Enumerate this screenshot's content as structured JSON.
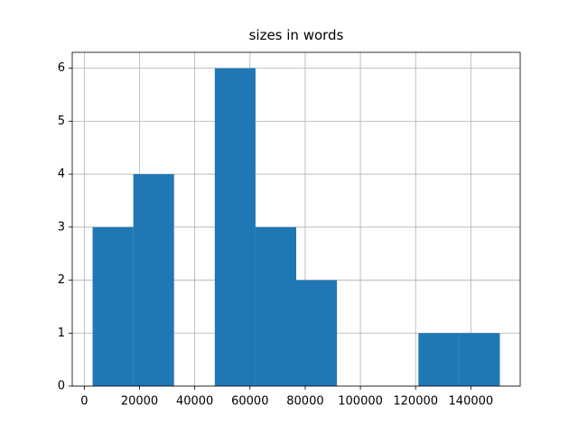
{
  "chart_data": {
    "type": "histogram",
    "title": "sizes in words",
    "bins": [
      3000,
      17750,
      32500,
      47250,
      62000,
      76750,
      91500,
      106250,
      121000,
      135750,
      150500
    ],
    "values": [
      3,
      4,
      0,
      6,
      3,
      2,
      0,
      0,
      1,
      1
    ],
    "color": "#1f77b4",
    "xlim": [
      -4375,
      157875
    ],
    "xticks": [
      0,
      20000,
      40000,
      60000,
      80000,
      100000,
      120000,
      140000
    ],
    "ylim": [
      0,
      6.3
    ],
    "yticks": [
      0,
      1,
      2,
      3,
      4,
      5,
      6
    ],
    "grid": true
  }
}
